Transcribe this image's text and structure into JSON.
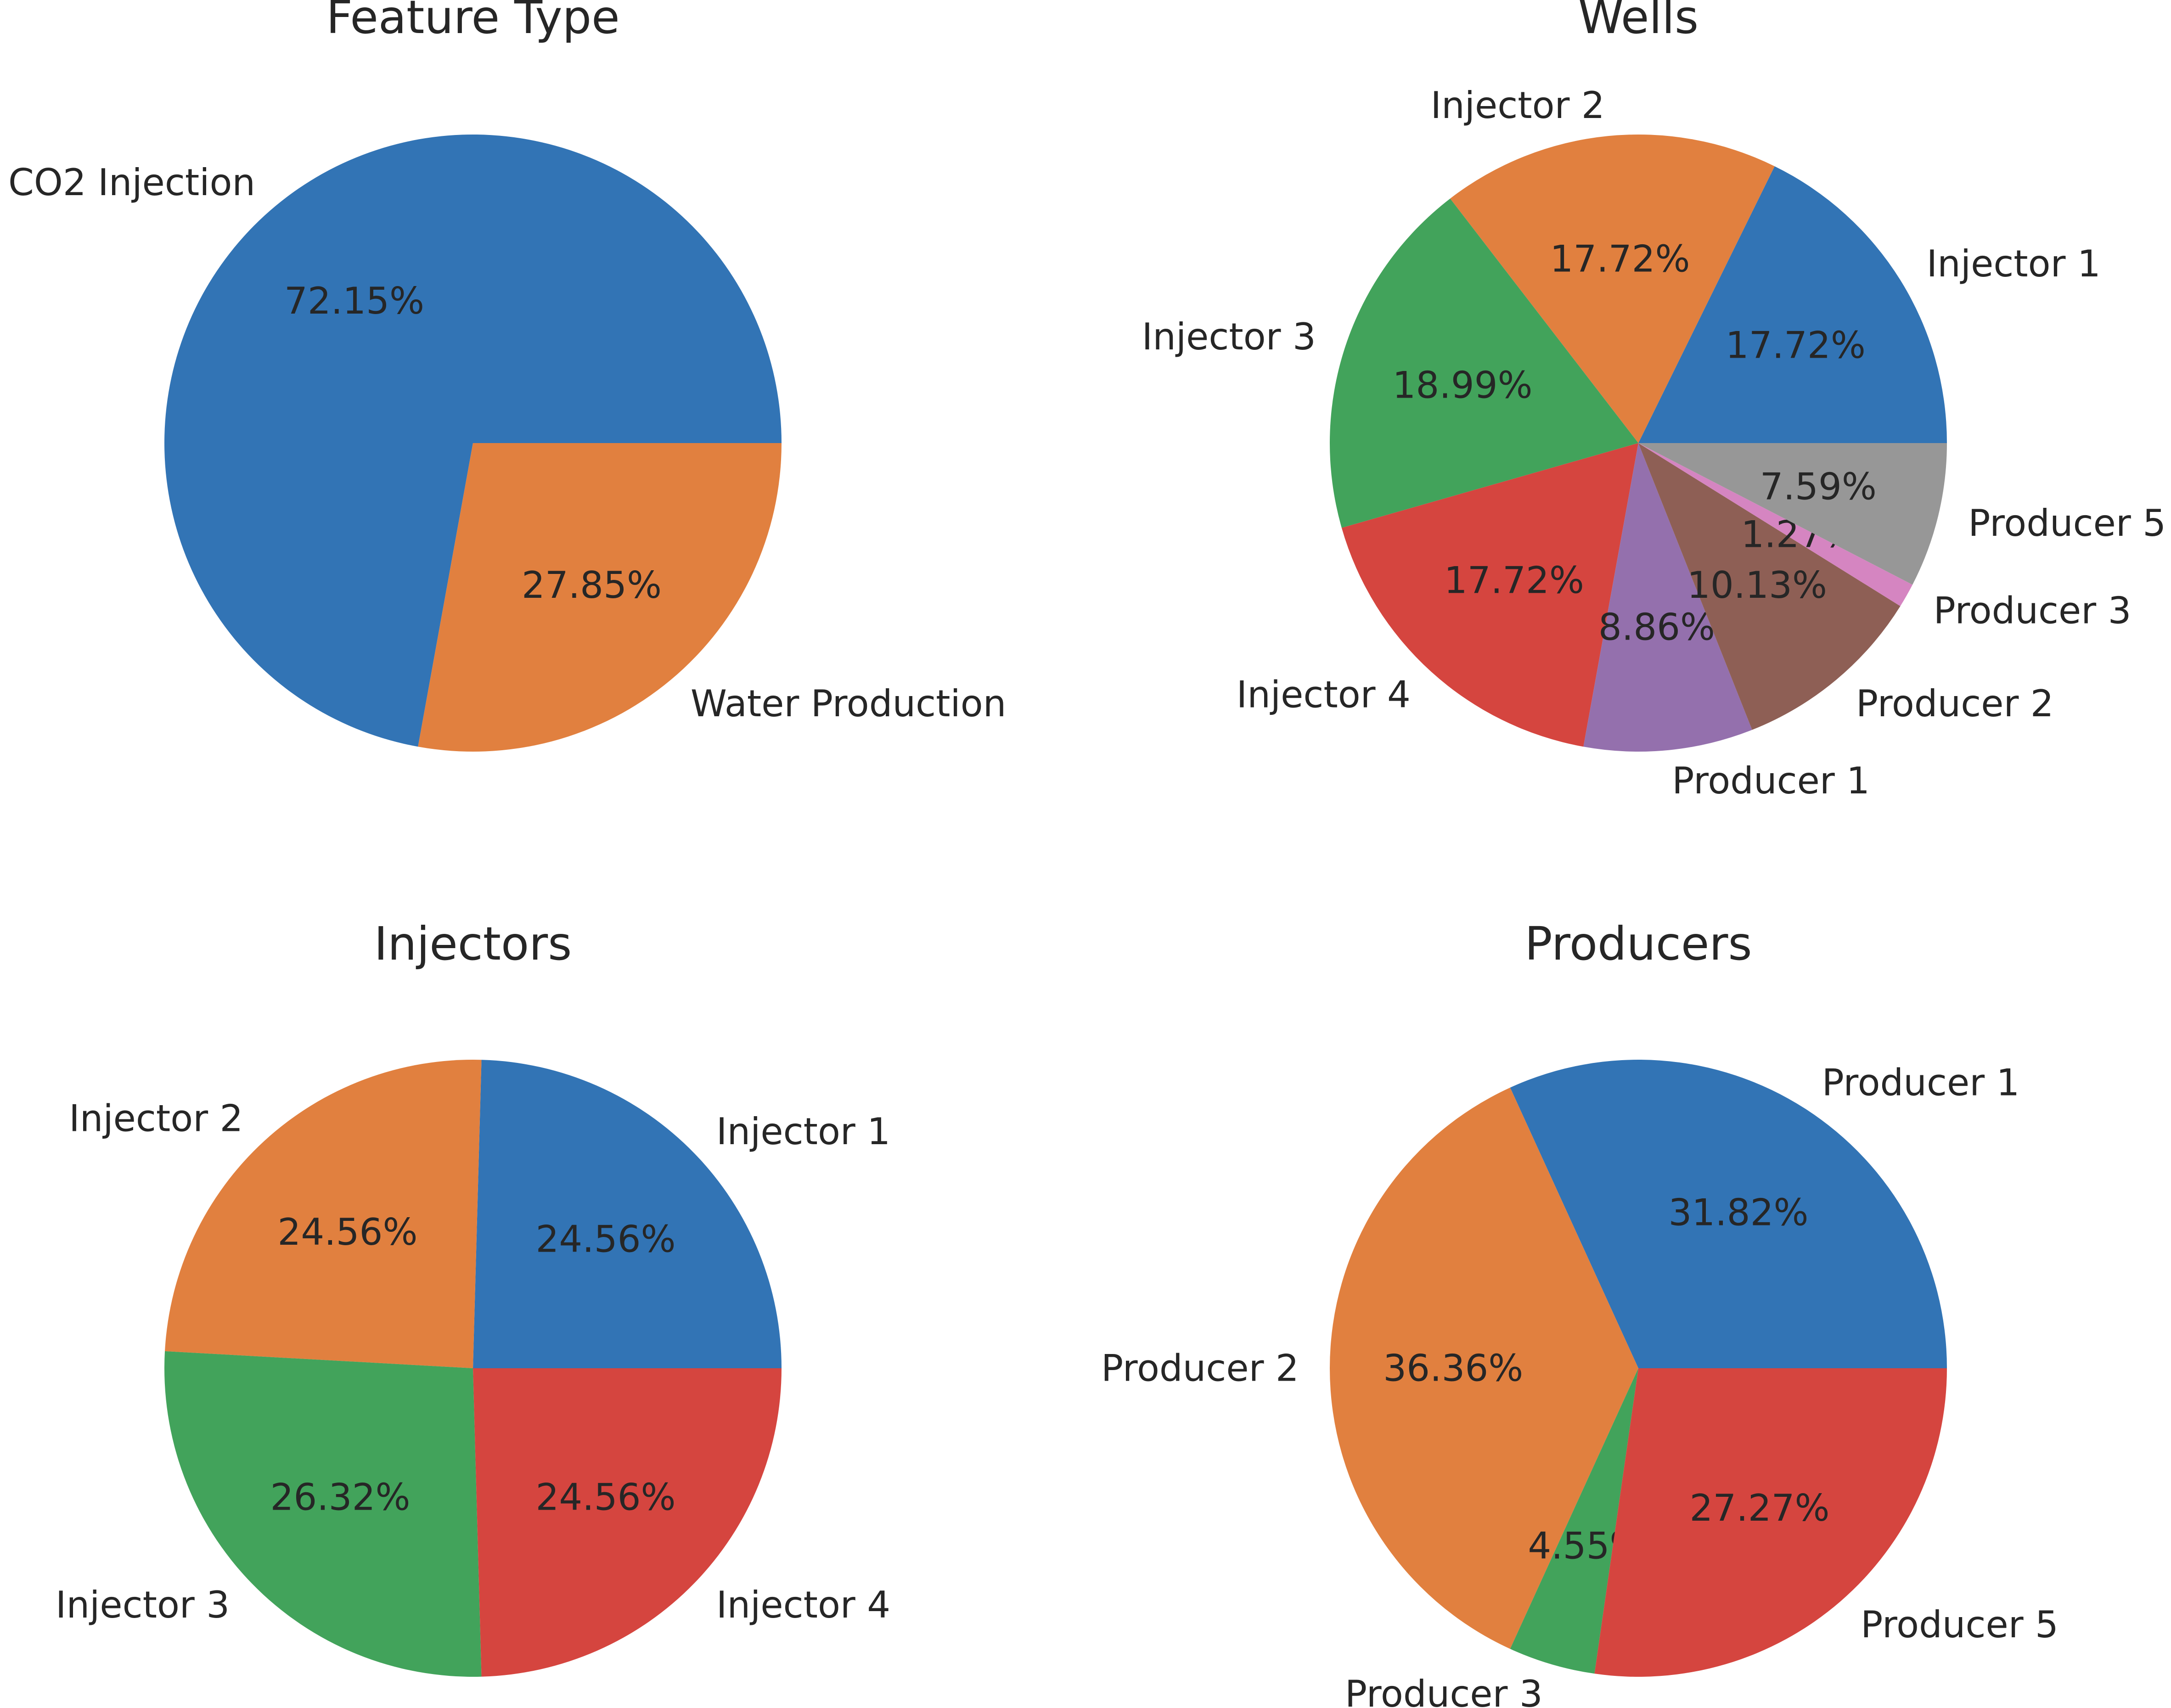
{
  "colors": {
    "palette": [
      "#3274b5",
      "#e1803f",
      "#42a35b",
      "#d5453f",
      "#9470ad",
      "#8e5f55",
      "#d585c1",
      "#979797"
    ],
    "text": "#262626",
    "background": "#ffffff"
  },
  "chart_data": [
    {
      "type": "pie",
      "title": "Feature Type",
      "labels": [
        "CO2 Injection",
        "Water Production"
      ],
      "values": [
        72.15,
        27.85
      ],
      "percent_labels": [
        "72.15%",
        "27.85%"
      ],
      "color_indices": [
        0,
        1
      ],
      "start_angle_deg": 0,
      "direction": "counterclockwise"
    },
    {
      "type": "pie",
      "title": "Wells",
      "labels": [
        "Injector 1",
        "Injector 2",
        "Injector 3",
        "Injector 4",
        "Producer 1",
        "Producer 2",
        "Producer 3",
        "Producer 5"
      ],
      "values": [
        17.72,
        17.72,
        18.99,
        17.72,
        8.86,
        10.13,
        1.27,
        7.59
      ],
      "percent_labels": [
        "17.72%",
        "17.72%",
        "18.99%",
        "17.72%",
        "8.86%",
        "10.13%",
        "1.27%",
        "7.59%"
      ],
      "color_indices": [
        0,
        1,
        2,
        3,
        4,
        5,
        6,
        7
      ],
      "start_angle_deg": 0,
      "direction": "counterclockwise"
    },
    {
      "type": "pie",
      "title": "Injectors",
      "labels": [
        "Injector 1",
        "Injector 2",
        "Injector 3",
        "Injector 4"
      ],
      "values": [
        24.56,
        24.56,
        26.32,
        24.56
      ],
      "percent_labels": [
        "24.56%",
        "24.56%",
        "26.32%",
        "24.56%"
      ],
      "color_indices": [
        0,
        1,
        2,
        3
      ],
      "start_angle_deg": 0,
      "direction": "counterclockwise"
    },
    {
      "type": "pie",
      "title": "Producers",
      "labels": [
        "Producer 1",
        "Producer 2",
        "Producer 3",
        "Producer 5"
      ],
      "values": [
        31.82,
        36.36,
        4.55,
        27.27
      ],
      "percent_labels": [
        "31.82%",
        "36.36%",
        "4.55%",
        "27.27%"
      ],
      "color_indices": [
        0,
        1,
        2,
        3
      ],
      "start_angle_deg": 0,
      "direction": "counterclockwise"
    }
  ]
}
